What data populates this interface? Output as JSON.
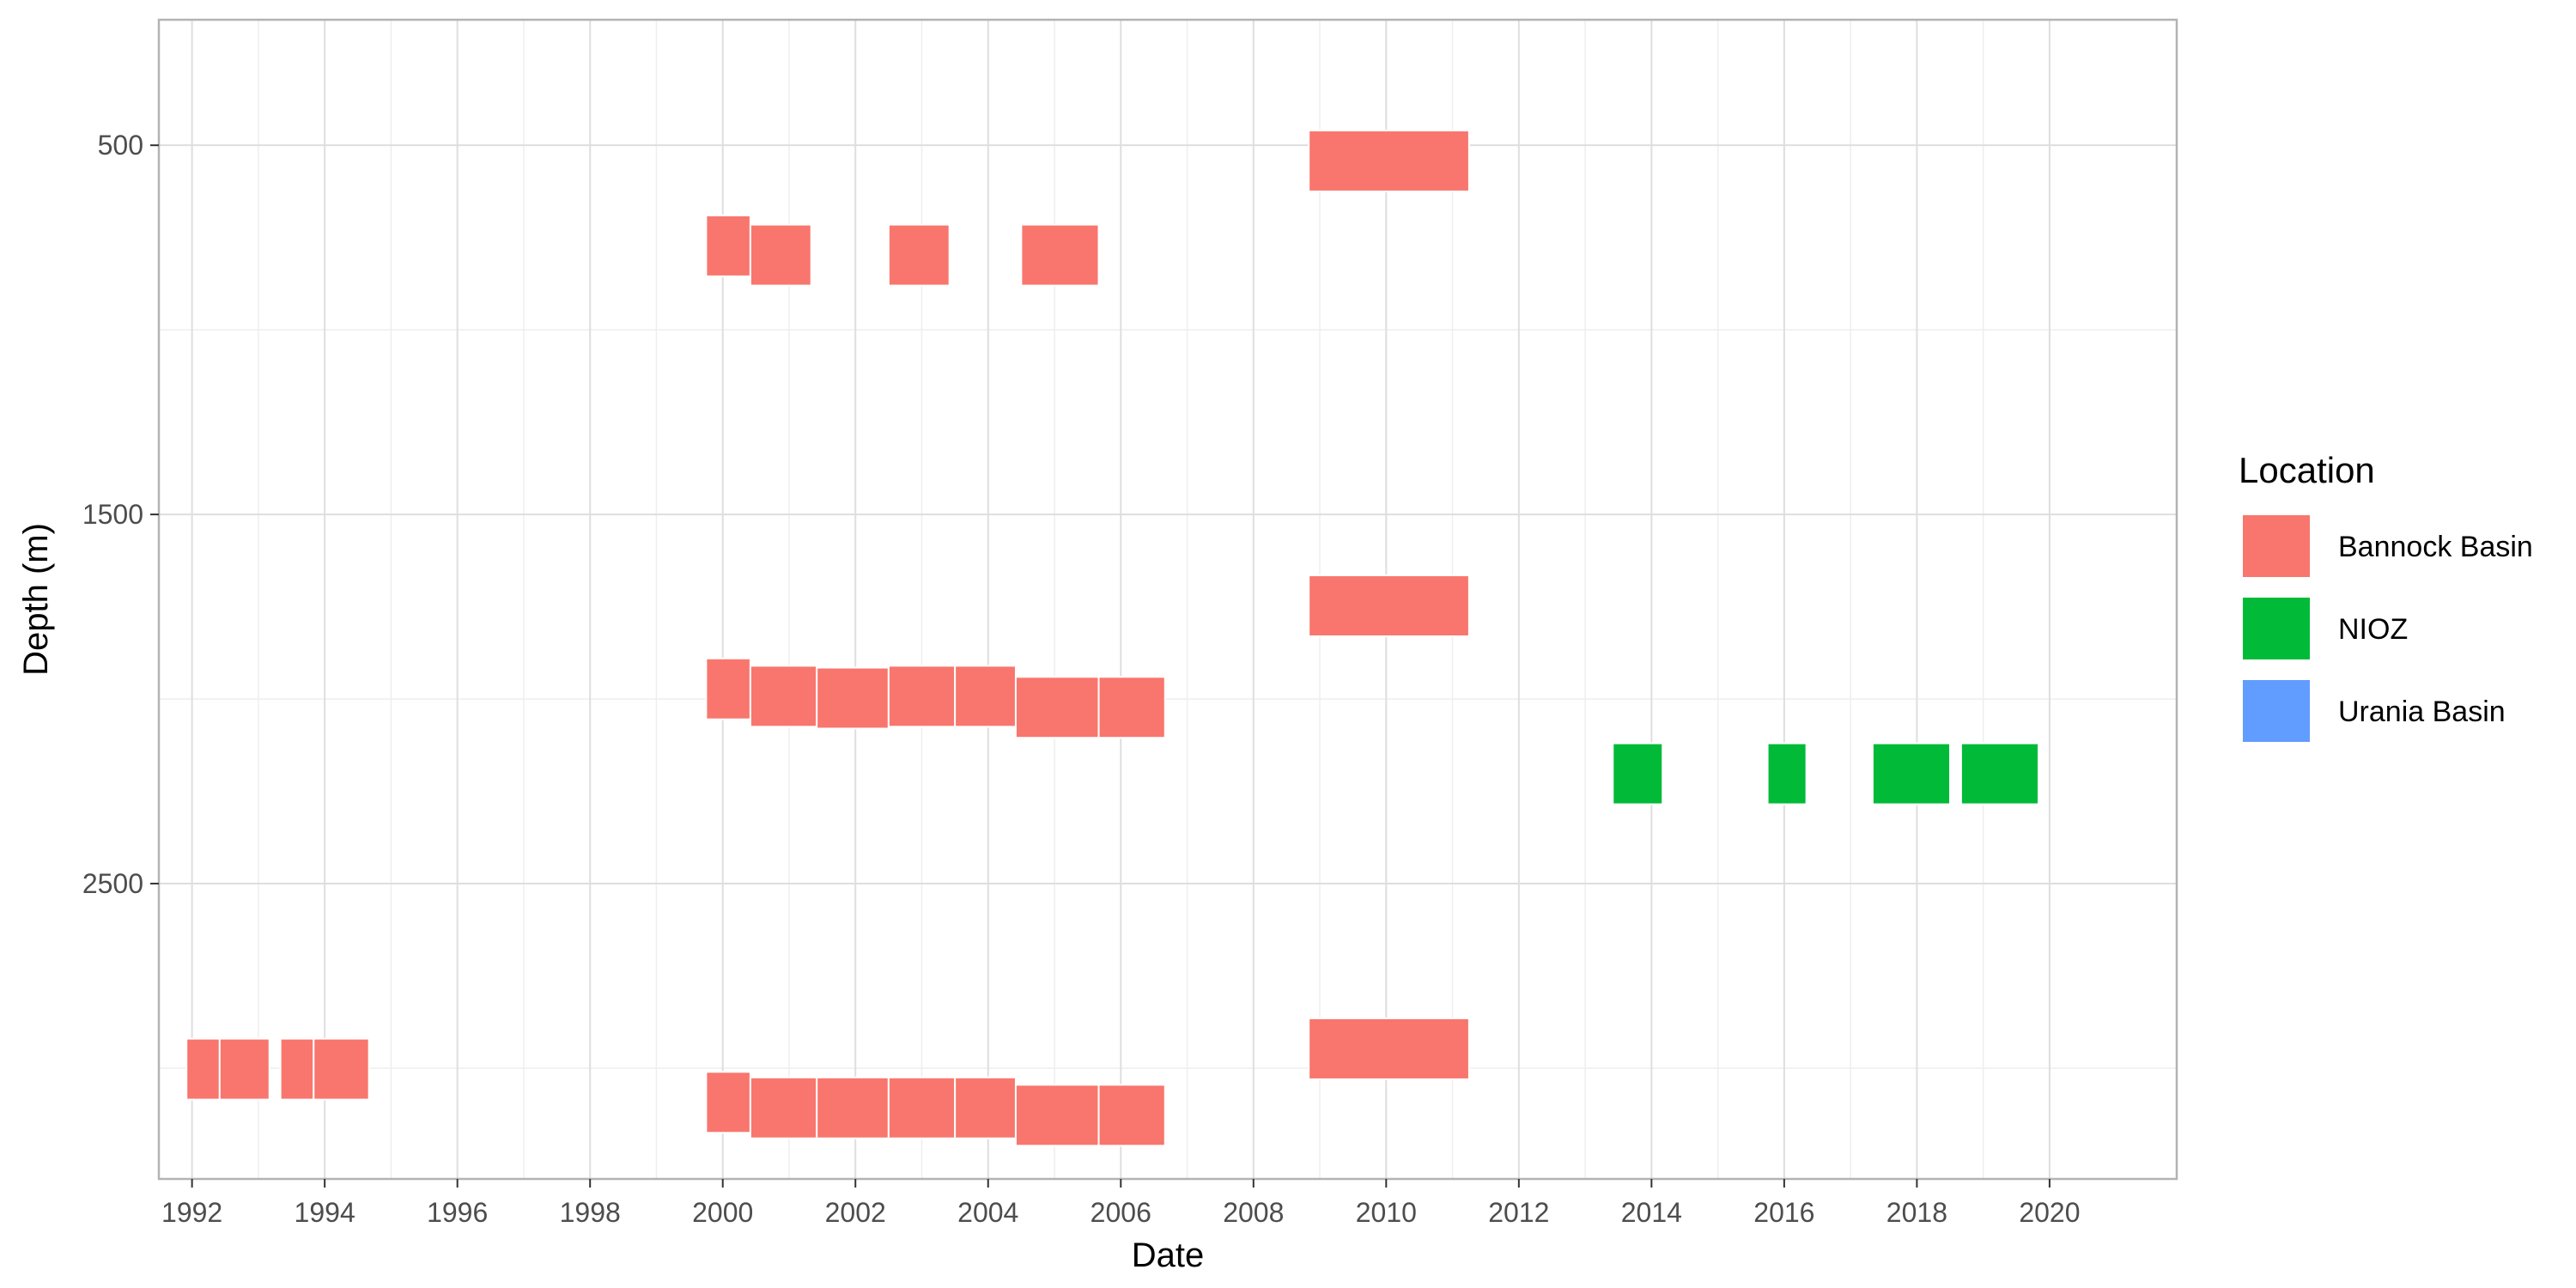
{
  "chart_data": {
    "type": "bar",
    "title": "",
    "xlabel": "Date",
    "ylabel": "Depth (m)",
    "x_scale": "date",
    "y_scale": "reversed",
    "xlim": [
      "1991-07-01",
      "2021-12-01"
    ],
    "ylim": [
      3300,
      160
    ],
    "x_ticks": [
      "1992",
      "1994",
      "1996",
      "1998",
      "2000",
      "2002",
      "2004",
      "2006",
      "2008",
      "2010",
      "2012",
      "2014",
      "2016",
      "2018",
      "2020"
    ],
    "y_ticks": [
      500,
      1500,
      2500
    ],
    "grid": true,
    "legend": {
      "title": "Location",
      "position": "right",
      "entries": [
        {
          "name": "Bannock Basin",
          "color": "#F8766D"
        },
        {
          "name": "NIOZ",
          "color": "#00BA38"
        },
        {
          "name": "Urania Basin",
          "color": "#619CFF"
        }
      ]
    },
    "series": [
      {
        "name": "Bannock Basin",
        "color": "#F8766D",
        "tiles": [
          {
            "x_start": "1991-12-01",
            "x_end": "1992-06-01",
            "y_top": 2920,
            "y_bottom": 3085
          },
          {
            "x_start": "1992-06-01",
            "x_end": "1993-03-01",
            "y_top": 2920,
            "y_bottom": 3085
          },
          {
            "x_start": "1993-05-01",
            "x_end": "1993-11-01",
            "y_top": 2920,
            "y_bottom": 3085
          },
          {
            "x_start": "1993-11-01",
            "x_end": "1994-09-01",
            "y_top": 2920,
            "y_bottom": 3085
          },
          {
            "x_start": "1999-10-01",
            "x_end": "2000-06-01",
            "y_top": 690,
            "y_bottom": 855
          },
          {
            "x_start": "2000-06-01",
            "x_end": "2001-05-01",
            "y_top": 715,
            "y_bottom": 880
          },
          {
            "x_start": "2002-07-01",
            "x_end": "2003-06-01",
            "y_top": 715,
            "y_bottom": 880
          },
          {
            "x_start": "2004-07-01",
            "x_end": "2005-09-01",
            "y_top": 715,
            "y_bottom": 880
          },
          {
            "x_start": "2008-11-01",
            "x_end": "2011-04-01",
            "y_top": 460,
            "y_bottom": 625
          },
          {
            "x_start": "1999-10-01",
            "x_end": "2000-06-01",
            "y_top": 1890,
            "y_bottom": 2055
          },
          {
            "x_start": "2000-06-01",
            "x_end": "2001-06-01",
            "y_top": 1910,
            "y_bottom": 2075
          },
          {
            "x_start": "2001-06-01",
            "x_end": "2002-07-01",
            "y_top": 1915,
            "y_bottom": 2080
          },
          {
            "x_start": "2002-07-01",
            "x_end": "2003-07-01",
            "y_top": 1910,
            "y_bottom": 2075
          },
          {
            "x_start": "2003-07-01",
            "x_end": "2004-06-01",
            "y_top": 1910,
            "y_bottom": 2075
          },
          {
            "x_start": "2004-06-01",
            "x_end": "2005-09-01",
            "y_top": 1940,
            "y_bottom": 2105
          },
          {
            "x_start": "2005-09-01",
            "x_end": "2006-09-01",
            "y_top": 1940,
            "y_bottom": 2105
          },
          {
            "x_start": "2008-11-01",
            "x_end": "2011-04-01",
            "y_top": 1665,
            "y_bottom": 1830
          },
          {
            "x_start": "1999-10-01",
            "x_end": "2000-06-01",
            "y_top": 3010,
            "y_bottom": 3175
          },
          {
            "x_start": "2000-06-01",
            "x_end": "2001-06-01",
            "y_top": 3025,
            "y_bottom": 3190
          },
          {
            "x_start": "2001-06-01",
            "x_end": "2002-07-01",
            "y_top": 3025,
            "y_bottom": 3190
          },
          {
            "x_start": "2002-07-01",
            "x_end": "2003-07-01",
            "y_top": 3025,
            "y_bottom": 3190
          },
          {
            "x_start": "2003-07-01",
            "x_end": "2004-06-01",
            "y_top": 3025,
            "y_bottom": 3190
          },
          {
            "x_start": "2004-06-01",
            "x_end": "2005-09-01",
            "y_top": 3045,
            "y_bottom": 3210
          },
          {
            "x_start": "2005-09-01",
            "x_end": "2006-09-01",
            "y_top": 3045,
            "y_bottom": 3210
          },
          {
            "x_start": "2008-11-01",
            "x_end": "2011-04-01",
            "y_top": 2865,
            "y_bottom": 3030
          }
        ]
      },
      {
        "name": "NIOZ",
        "color": "#00BA38",
        "tiles": [
          {
            "x_start": "2013-06-01",
            "x_end": "2014-03-01",
            "y_top": 2120,
            "y_bottom": 2285
          },
          {
            "x_start": "2015-10-01",
            "x_end": "2016-05-01",
            "y_top": 2120,
            "y_bottom": 2285
          },
          {
            "x_start": "2017-05-01",
            "x_end": "2018-07-01",
            "y_top": 2120,
            "y_bottom": 2285
          },
          {
            "x_start": "2018-09-01",
            "x_end": "2019-11-01",
            "y_top": 2120,
            "y_bottom": 2285
          }
        ]
      },
      {
        "name": "Urania Basin",
        "color": "#619CFF",
        "tiles": []
      }
    ]
  }
}
